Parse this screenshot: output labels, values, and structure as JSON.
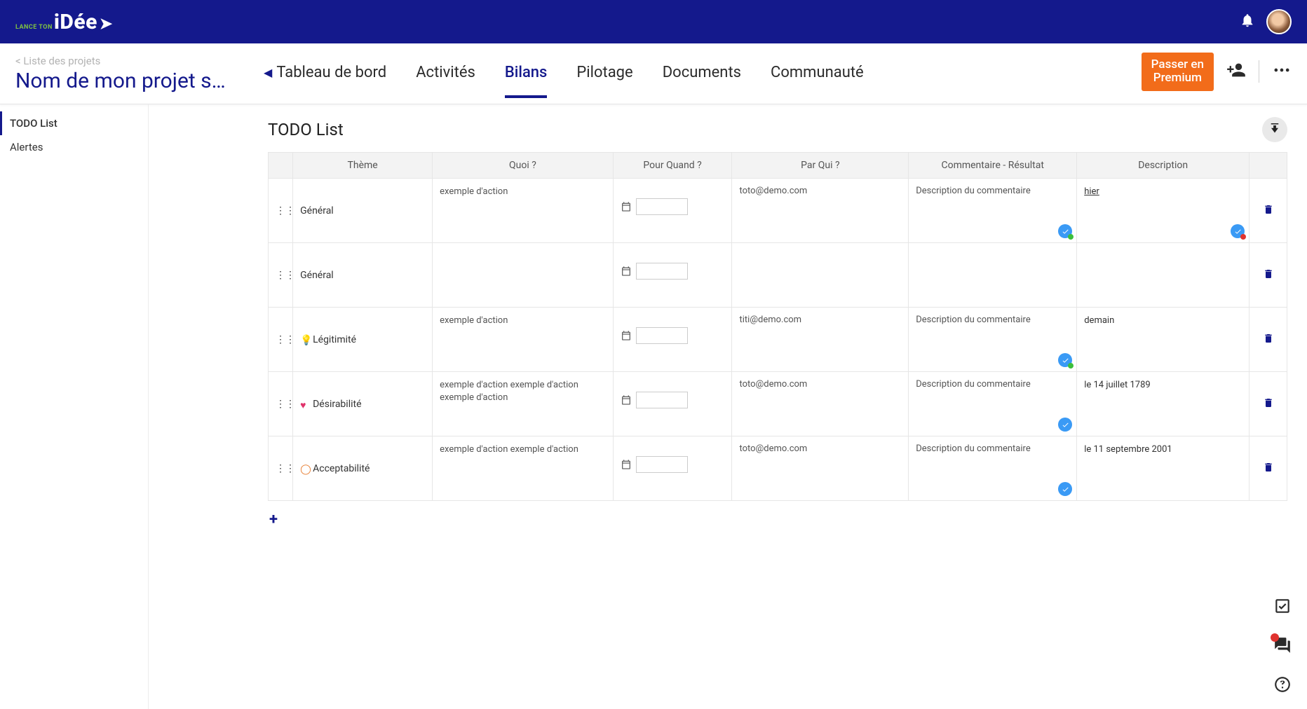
{
  "colors": {
    "brand_blue": "#14198c",
    "premium_orange": "#f26c1a",
    "badge_blue": "#3a9af5",
    "badge_green": "#3cbf3c",
    "badge_red": "#e0332f",
    "logo_green": "#7fc241"
  },
  "topbar": {
    "logo_pre": "LANCE TON",
    "logo_main": "iDée"
  },
  "nav": {
    "breadcrumb": "< Liste des projets",
    "project_title": "Nom de mon projet s…",
    "tabs": [
      {
        "label": "Tableau de bord",
        "active": false,
        "has_tri": true
      },
      {
        "label": "Activités",
        "active": false
      },
      {
        "label": "Bilans",
        "active": true
      },
      {
        "label": "Pilotage",
        "active": false
      },
      {
        "label": "Documents",
        "active": false
      },
      {
        "label": "Communauté",
        "active": false
      }
    ],
    "premium_label": "Passer en\nPremium"
  },
  "sidebar": {
    "items": [
      {
        "label": "TODO List",
        "active": true
      },
      {
        "label": "Alertes",
        "active": false
      }
    ]
  },
  "main": {
    "title": "TODO List",
    "columns": [
      "",
      "Thème",
      "Quoi ?",
      "Pour Quand ?",
      "Par Qui ?",
      "Commentaire - Résultat",
      "Description",
      ""
    ],
    "rows": [
      {
        "theme": "Général",
        "theme_icon": null,
        "quoi": "exemple d'action",
        "qui": "toto@demo.com",
        "comm": "Description du commentaire",
        "comm_badge": "green",
        "desc": "hier",
        "desc_underline": true,
        "desc_badge": "red"
      },
      {
        "theme": "Général",
        "theme_icon": null,
        "quoi": "",
        "qui": "",
        "comm": "",
        "comm_badge": null,
        "desc": "",
        "desc_badge": null
      },
      {
        "theme": "Légitimité",
        "theme_icon": "bulb",
        "quoi": "exemple d'action",
        "qui": "titi@demo.com",
        "comm": "Description du commentaire",
        "comm_badge": "green",
        "desc": "demain",
        "desc_badge": null
      },
      {
        "theme": "Désirabilité",
        "theme_icon": "heart",
        "quoi": "exemple d'action exemple d'action exemple d'action",
        "qui": "toto@demo.com",
        "comm": "Description du commentaire",
        "comm_badge": "plain",
        "desc": "le 14 juillet 1789",
        "desc_badge": null
      },
      {
        "theme": "Acceptabilité",
        "theme_icon": "ring",
        "quoi": "exemple d'action exemple d'action",
        "qui": "toto@demo.com",
        "comm": "Description du commentaire",
        "comm_badge": "plain",
        "desc": "le 11 septembre 2001",
        "desc_badge": null
      }
    ],
    "add_label": "+"
  }
}
